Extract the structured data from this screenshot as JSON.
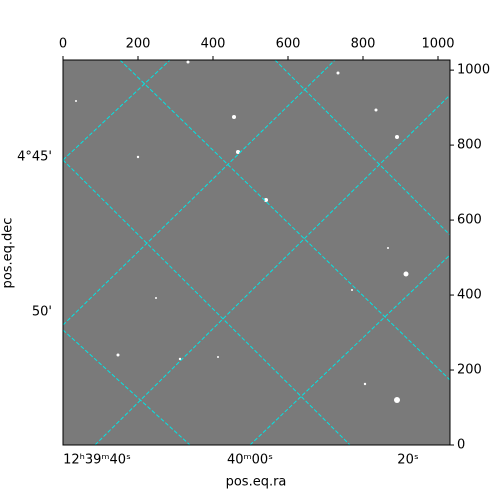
{
  "chart_data": {
    "type": "image",
    "xlabel": "pos.eq.ra",
    "ylabel": "pos.eq.dec",
    "xlim": [
      0,
      1032
    ],
    "ylim": [
      0,
      1027
    ],
    "xticks": [
      0,
      200,
      400,
      600,
      800,
      1000
    ],
    "yticks": [
      0,
      200,
      400,
      600,
      800,
      1000
    ],
    "ra_labels": [
      "12ʰ39ᵐ40ˢ",
      "40ᵐ00ˢ",
      "20ˢ"
    ],
    "dec_labels": [
      "4°45'",
      "50'"
    ],
    "grid_color": "#00e5e5"
  }
}
